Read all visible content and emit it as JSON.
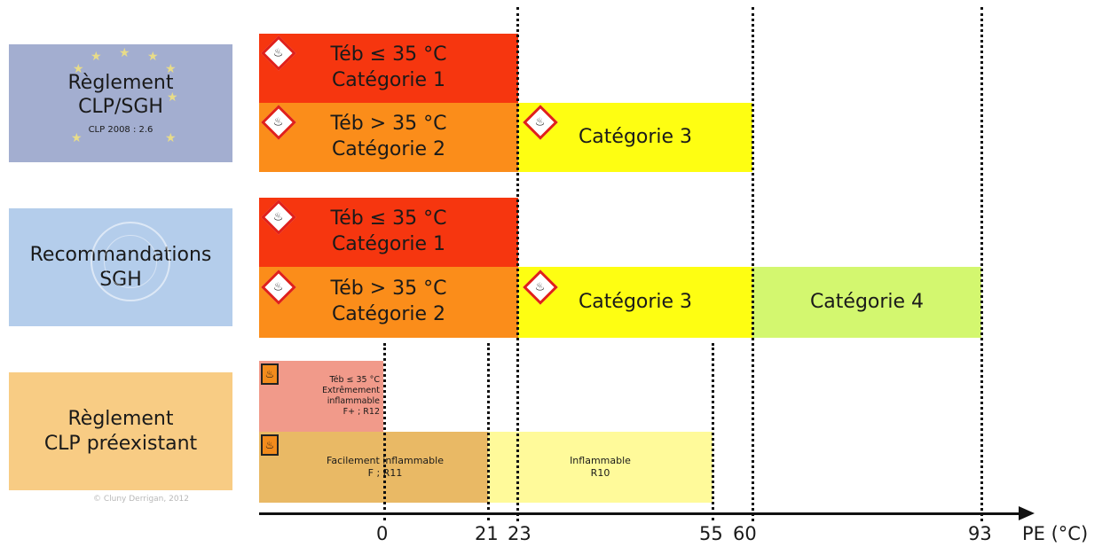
{
  "rows": {
    "clp_sgh": {
      "title_line1": "Règlement",
      "title_line2": "CLP/SGH",
      "reference": "CLP 2008 : 2.6",
      "cat1_line1": "Téb ≤ 35 °C",
      "cat1_line2": "Catégorie 1",
      "cat2_line1": "Téb > 35 °C",
      "cat2_line2": "Catégorie 2",
      "cat3": "Catégorie 3"
    },
    "recommandations": {
      "title_line1": "Recommandations",
      "title_line2": "SGH",
      "cat1_line1": "Téb ≤ 35 °C",
      "cat1_line2": "Catégorie 1",
      "cat2_line1": "Téb > 35 °C",
      "cat2_line2": "Catégorie 2",
      "cat3": "Catégorie 3",
      "cat4": "Catégorie 4"
    },
    "preexistant": {
      "title_line1": "Règlement",
      "title_line2": "CLP préexistant",
      "extreme_line1": "Téb ≤ 35 °C",
      "extreme_line2": "Extrêmement",
      "extreme_line3": "inflammable",
      "extreme_line4": "F+ ; R12",
      "facile_line1": "Facilement inflammable",
      "facile_line2": "F ; R11",
      "inflammable_line1": "Inflammable",
      "inflammable_line2": "R10",
      "credit": "© Cluny Derrigan, 2012"
    }
  },
  "axis": {
    "ticks": [
      "0",
      "21",
      "23",
      "55",
      "60",
      "93"
    ],
    "label": "PE (°C)"
  },
  "icons": {
    "ghs_flame": "flame-diamond-icon",
    "old_flame": "flame-square-icon"
  },
  "colors": {
    "cat1": "#f6360f",
    "cat2": "#fb8d1a",
    "cat3": "#fefe12",
    "cat4": "#d3f76f",
    "extreme": "#f19a8a",
    "facile": "#e9b965",
    "inflammable": "#fffa9a"
  }
}
